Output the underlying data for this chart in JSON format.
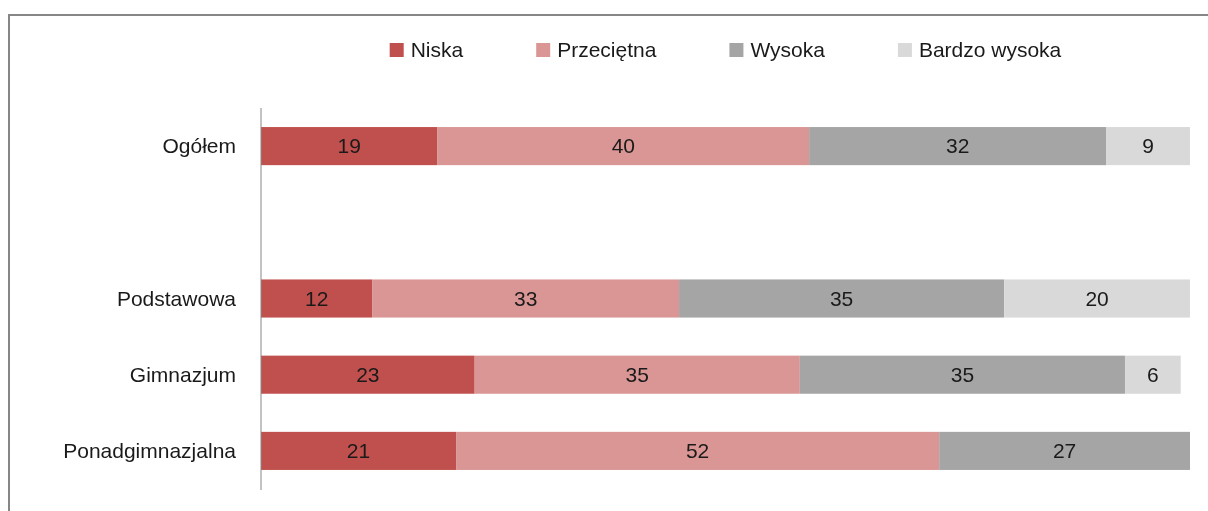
{
  "chart_data": {
    "type": "bar",
    "orientation": "horizontal",
    "stacked": true,
    "categories": [
      "Ogółem",
      null,
      "Podstawowa",
      "Gimnazjum",
      "Ponadgimnazjalna"
    ],
    "series": [
      {
        "name": "Niska",
        "color": "#c0504d",
        "values": [
          19,
          null,
          12,
          23,
          21
        ]
      },
      {
        "name": "Przeciętna",
        "color": "#d99694",
        "values": [
          40,
          null,
          33,
          35,
          52
        ]
      },
      {
        "name": "Wysoka",
        "color": "#a5a5a5",
        "values": [
          32,
          null,
          35,
          35,
          27
        ]
      },
      {
        "name": "Bardzo wysoka",
        "color": "#d9d9d9",
        "values": [
          9,
          null,
          20,
          6,
          null
        ]
      }
    ],
    "xlim": [
      0,
      100
    ],
    "data_labels": true,
    "legend": "top",
    "tick_labels": "y"
  }
}
